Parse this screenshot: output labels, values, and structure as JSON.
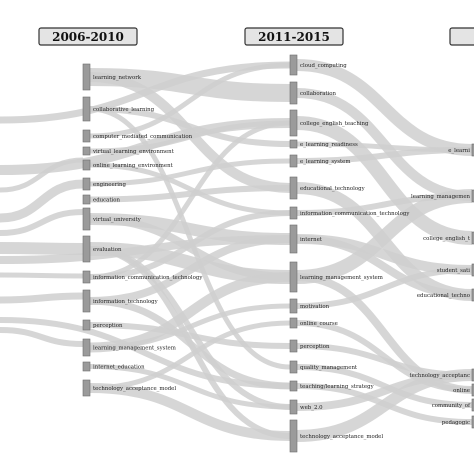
{
  "periods": [
    {
      "label": "2006-2010"
    },
    {
      "label": "2011-2015"
    },
    {
      "label": ""
    }
  ],
  "nodes_2006_2010": [
    "learning_network",
    "collaborative_learning",
    "computer_mediated_communication",
    "virtual_learning_environment",
    "online_learning_environment",
    "engineering",
    "education",
    "virtual_university",
    "evaluation",
    "information_communication_technology",
    "information_technology",
    "perception",
    "learning_management_system",
    "internet_education",
    "technology_acceptance_model"
  ],
  "nodes_2011_2015": [
    "cloud_computing",
    "collaboration",
    "college_english_teaching",
    "e_learning_readiness",
    "e_learning_system",
    "educational_technology",
    "information_communication_technology",
    "internet",
    "learning_management_system",
    "motivation",
    "online_course",
    "perception",
    "quality_management",
    "teaching/learning_strategy",
    "web_2.0",
    "technology_acceptance_model"
  ],
  "nodes_2016_partial": [
    "e_learni",
    "learning_managemen",
    "college_english_t",
    "student_sati",
    "educational_techno",
    "technology_acceptanc",
    "online",
    "community_of",
    "pedagogic"
  ],
  "colors": {
    "flow": "#cfcfcf",
    "node": "#9b9b9b",
    "header_fill": "#e4e4e4"
  }
}
